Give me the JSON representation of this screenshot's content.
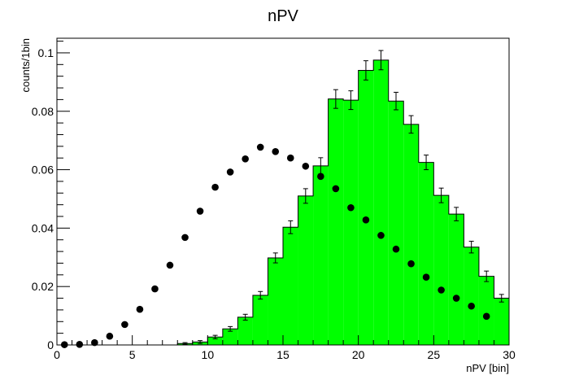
{
  "chart_data": {
    "type": "bar",
    "title": "nPV",
    "xlabel": "nPV [bin]",
    "ylabel": "counts/1bin",
    "xlim": [
      0,
      30
    ],
    "ylim": [
      0,
      0.105
    ],
    "grid": false,
    "x_ticks": [
      0,
      5,
      10,
      15,
      20,
      25,
      30
    ],
    "x_tick_labels": [
      "0",
      "5",
      "10",
      "15",
      "20",
      "25",
      "30"
    ],
    "y_ticks": [
      0,
      0.02,
      0.04,
      0.06,
      0.08,
      0.1
    ],
    "y_tick_labels": [
      "0",
      "0.02",
      "0.04",
      "0.06",
      "0.08",
      "0.1"
    ],
    "histogram": {
      "color": "#00ff00",
      "bin_edges": [
        0,
        1,
        2,
        3,
        4,
        5,
        6,
        7,
        8,
        9,
        10,
        11,
        12,
        13,
        14,
        15,
        16,
        17,
        18,
        19,
        20,
        21,
        22,
        23,
        24,
        25,
        26,
        27,
        28,
        29,
        30
      ],
      "values": [
        0,
        0,
        0,
        0,
        0,
        0,
        0,
        0,
        0.0005,
        0.001,
        0.0027,
        0.0055,
        0.0095,
        0.017,
        0.0298,
        0.0403,
        0.051,
        0.0613,
        0.0842,
        0.0838,
        0.094,
        0.0975,
        0.0835,
        0.0755,
        0.0625,
        0.0512,
        0.0448,
        0.0335,
        0.0235,
        0.016
      ],
      "errors": [
        0,
        0,
        0,
        0,
        0,
        0,
        0,
        0,
        0.0003,
        0.0005,
        0.0006,
        0.0008,
        0.001,
        0.0013,
        0.0017,
        0.0022,
        0.0025,
        0.0028,
        0.0032,
        0.0032,
        0.0033,
        0.0033,
        0.003,
        0.003,
        0.0025,
        0.0025,
        0.0023,
        0.002,
        0.0018,
        0.0013
      ]
    },
    "points": {
      "color": "#000000",
      "x": [
        0.5,
        1.5,
        2.5,
        3.5,
        4.5,
        5.5,
        6.5,
        7.5,
        8.5,
        9.5,
        10.5,
        11.5,
        12.5,
        13.5,
        14.5,
        15.5,
        16.5,
        17.5,
        18.5,
        19.5,
        20.5,
        21.5,
        22.5,
        23.5,
        24.5,
        25.5,
        26.5,
        27.5,
        28.5
      ],
      "y": [
        0.0001,
        0.0002,
        0.0008,
        0.003,
        0.007,
        0.0122,
        0.0192,
        0.0273,
        0.0368,
        0.0458,
        0.054,
        0.0592,
        0.0637,
        0.0677,
        0.0662,
        0.064,
        0.0612,
        0.0577,
        0.0535,
        0.047,
        0.0428,
        0.0375,
        0.0328,
        0.0278,
        0.0232,
        0.0188,
        0.016,
        0.0133,
        0.0098
      ]
    }
  }
}
